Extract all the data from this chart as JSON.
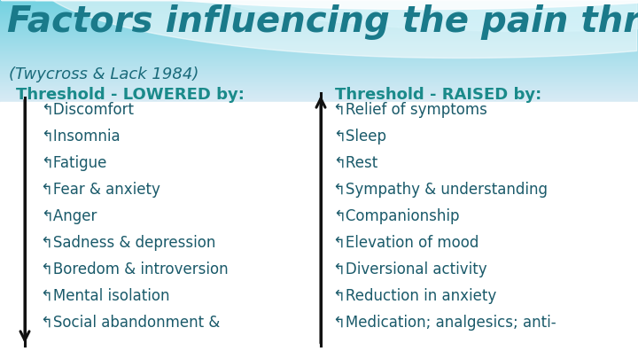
{
  "title": "Factors influencing the pain threshold",
  "subtitle": "(Twycross & Lack 1984)",
  "left_header": "Threshold - LOWERED by:",
  "right_header": "Threshold - RAISED by:",
  "left_items": [
    "Discomfort",
    "Insomnia",
    "Fatigue",
    "Fear & anxiety",
    "Anger",
    "Sadness & depression",
    "Boredom & introversion",
    "Mental isolation",
    "Social abandonment &"
  ],
  "right_items": [
    "Relief of symptoms",
    "Sleep",
    "Rest",
    "Sympathy & understanding",
    "Companionship",
    "Elevation of mood",
    "Diversional activity",
    "Reduction in anxiety",
    "Medication; analgesics; anti-"
  ],
  "title_color": "#1a7a8a",
  "subtitle_color": "#1a6a7a",
  "header_color": "#1a8a8a",
  "item_color": "#1a5a6a",
  "arrow_color": "#111111",
  "bg_teal_light": "#b8eaf2",
  "bg_teal_mid": "#7ecfe0",
  "bg_white": "#ffffff",
  "wave_color1": "#ffffff",
  "wave_color2": "#d0f0f8"
}
